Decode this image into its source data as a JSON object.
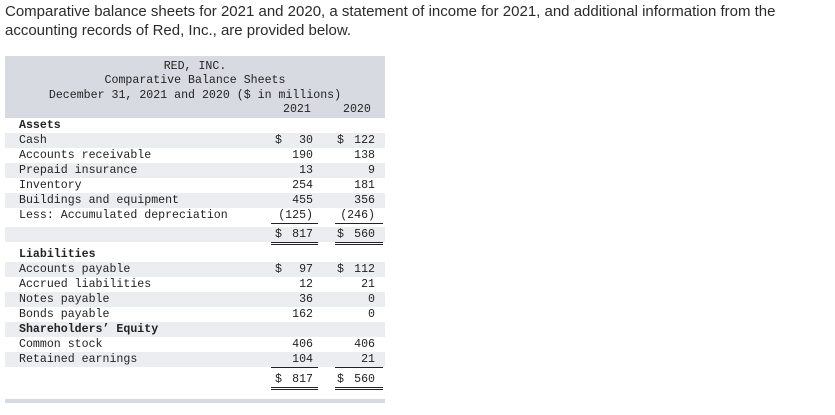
{
  "intro": "Comparative balance sheets for 2021 and 2020, a statement of income for 2021, and additional information from the accounting records of Red, Inc., are provided below.",
  "sheet": {
    "company": "RED, INC.",
    "title": "Comparative Balance Sheets",
    "subtitle": "December 31, 2021 and 2020 ($ in millions)",
    "year1": "2021",
    "year2": "2020",
    "dollar": "$",
    "assets_heading": "Assets",
    "assets": [
      {
        "label": "Cash",
        "v2021": "30",
        "v2020": "122"
      },
      {
        "label": "Accounts receivable",
        "v2021": "190",
        "v2020": "138"
      },
      {
        "label": "Prepaid insurance",
        "v2021": "13",
        "v2020": "9"
      },
      {
        "label": "Inventory",
        "v2021": "254",
        "v2020": "181"
      },
      {
        "label": "Buildings and equipment",
        "v2021": "455",
        "v2020": "356"
      },
      {
        "label": "Less: Accumulated depreciation",
        "v2021": "(125)",
        "v2020": "(246)"
      }
    ],
    "assets_total": {
      "v2021": "817",
      "v2020": "560"
    },
    "liabilities_heading": "Liabilities",
    "liabilities": [
      {
        "label": "Accounts payable",
        "v2021": "97",
        "v2020": "112"
      },
      {
        "label": "Accrued liabilities",
        "v2021": "12",
        "v2020": "21"
      },
      {
        "label": "Notes payable",
        "v2021": "36",
        "v2020": "0"
      },
      {
        "label": "Bonds payable",
        "v2021": "162",
        "v2020": "0"
      }
    ],
    "equity_heading": "Shareholders’ Equity",
    "equity": [
      {
        "label": "Common stock",
        "v2021": "406",
        "v2020": "406"
      },
      {
        "label": "Retained earnings",
        "v2021": "104",
        "v2020": "21"
      }
    ],
    "le_total": {
      "v2021": "817",
      "v2020": "560"
    }
  }
}
